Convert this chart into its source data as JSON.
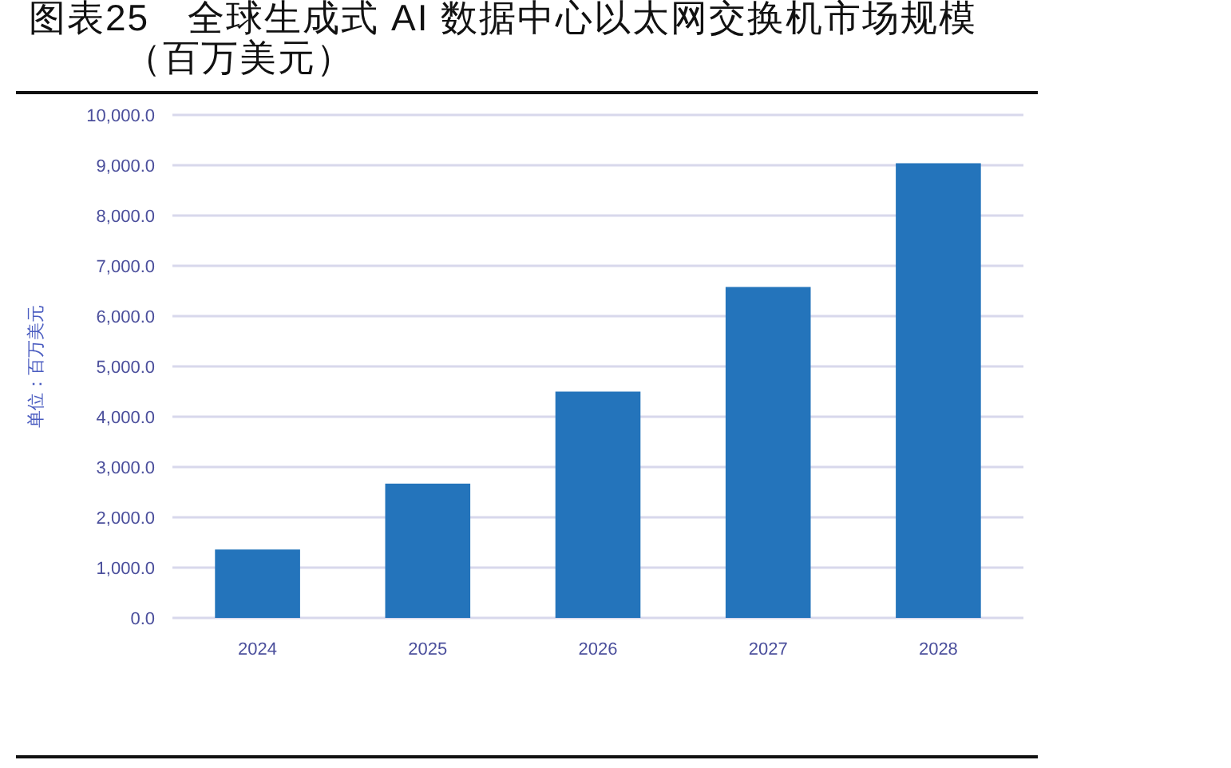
{
  "chart_data": {
    "type": "bar",
    "title": "图表25　全球生成式 AI 数据中心以太网交换机市场规模（百万美元）",
    "ylabel": "单位：百万美元",
    "categories": [
      "2024",
      "2025",
      "2026",
      "2027",
      "2028"
    ],
    "values": [
      1360,
      2670,
      4500,
      6580,
      9040
    ],
    "color": "#2474bb",
    "ylim": [
      0,
      10000
    ],
    "yticks": [
      {
        "value": 0,
        "label": "0.0"
      },
      {
        "value": 1000,
        "label": "1,000.0"
      },
      {
        "value": 2000,
        "label": "2,000.0"
      },
      {
        "value": 3000,
        "label": "3,000.0"
      },
      {
        "value": 4000,
        "label": "4,000.0"
      },
      {
        "value": 5000,
        "label": "5,000.0"
      },
      {
        "value": 6000,
        "label": "6,000.0"
      },
      {
        "value": 7000,
        "label": "7,000.0"
      },
      {
        "value": 8000,
        "label": "8,000.0"
      },
      {
        "value": 9000,
        "label": "9,000.0"
      },
      {
        "value": 10000,
        "label": "10,000.0"
      }
    ],
    "grid": "y"
  }
}
